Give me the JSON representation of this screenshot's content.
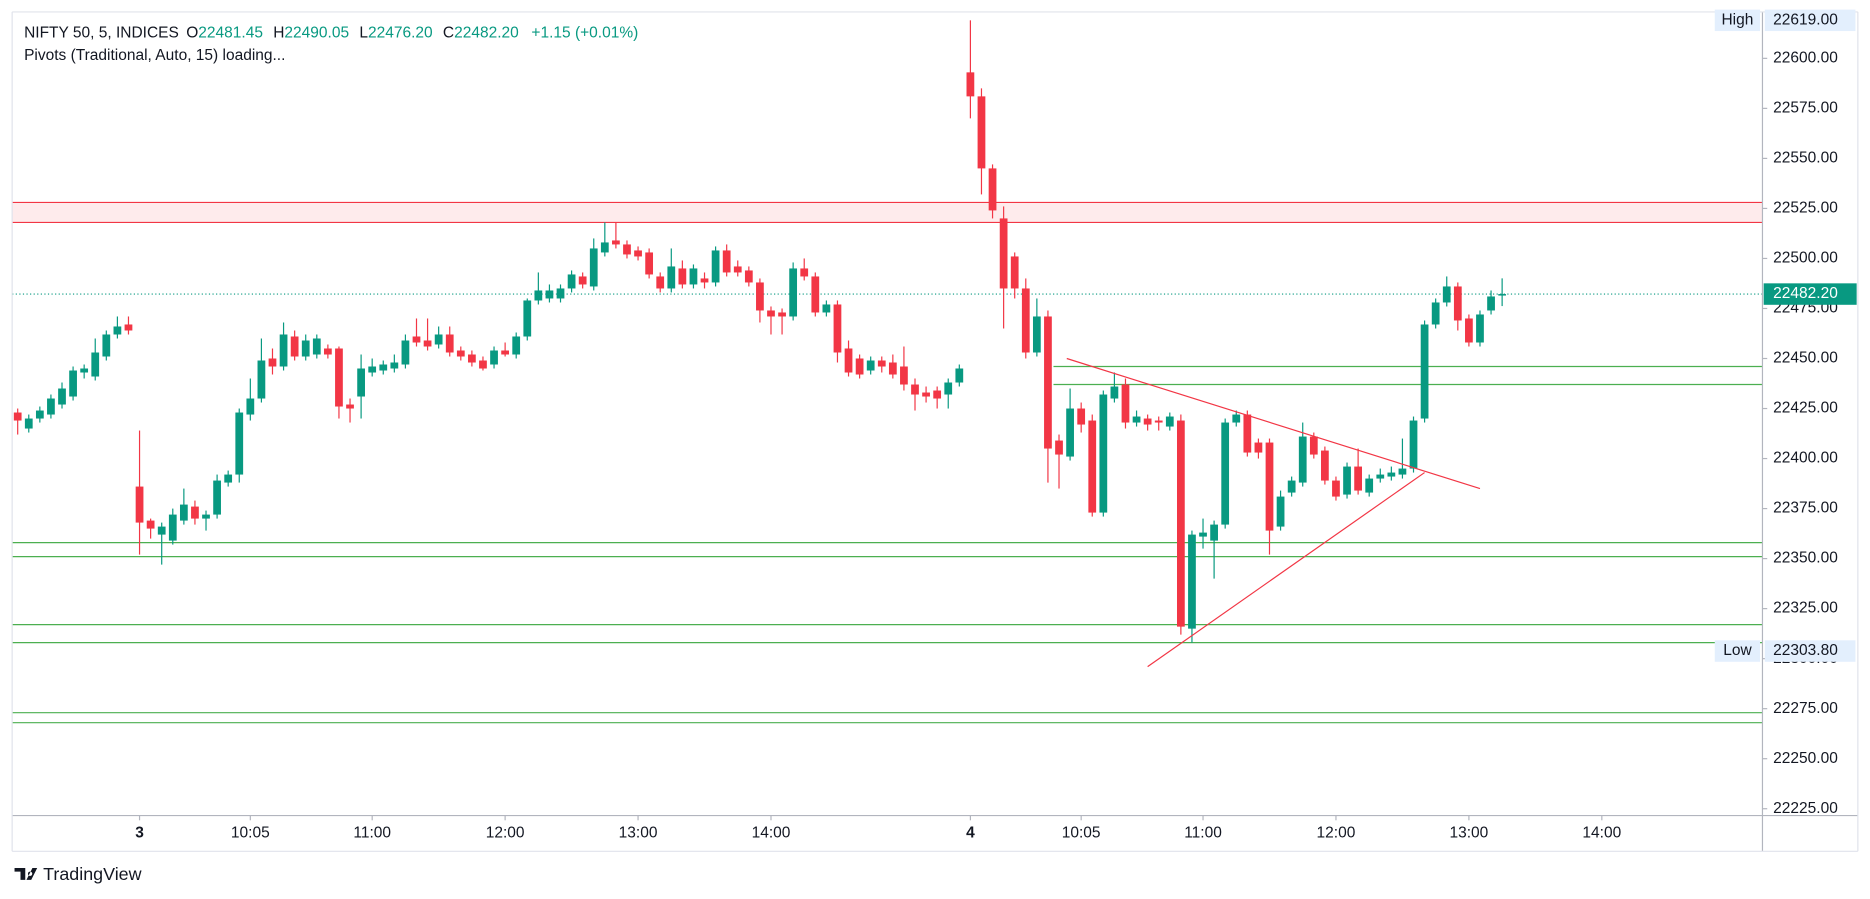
{
  "chart_data": {
    "type": "candlestick",
    "legend": {
      "symbol": "NIFTY 50, 5, INDICES",
      "o_label": "O",
      "open": "22481.45",
      "h_label": "H",
      "high": "22490.05",
      "l_label": "L",
      "low": "22476.20",
      "c_label": "C",
      "close": "22482.20",
      "change": "+1.15 (+0.01%)"
    },
    "indicator": "Pivots (Traditional, Auto, 15) loading...",
    "up_color": "#089981",
    "down_color": "#f23645",
    "ohlc": [
      [
        22423,
        22425,
        22412,
        22419
      ],
      [
        22415,
        22422,
        22413,
        22420
      ],
      [
        22420,
        22426,
        22418,
        22424
      ],
      [
        22422,
        22432,
        22420,
        22430
      ],
      [
        22427,
        22438,
        22425,
        22435
      ],
      [
        22431,
        22446,
        22429,
        22444
      ],
      [
        22443,
        22447,
        22440,
        22445
      ],
      [
        22441,
        22460,
        22439,
        22453
      ],
      [
        22451,
        22464,
        22449,
        22462
      ],
      [
        22462,
        22471,
        22460,
        22466
      ],
      [
        22467,
        22471,
        22462,
        22464
      ],
      [
        22386,
        22414,
        22352,
        22368
      ],
      [
        22369,
        22370,
        22360,
        22365
      ],
      [
        22362,
        22368,
        22347,
        22366
      ],
      [
        22359,
        22375,
        22357,
        22372
      ],
      [
        22369,
        22385,
        22367,
        22377
      ],
      [
        22376,
        22379,
        22367,
        22370
      ],
      [
        22370,
        22374,
        22364,
        22372
      ],
      [
        22372,
        22392,
        22370,
        22389
      ],
      [
        22388,
        22394,
        22386,
        22392
      ],
      [
        22392,
        22425,
        22388,
        22423
      ],
      [
        22422,
        22440,
        22419,
        22430
      ],
      [
        22430,
        22460,
        22428,
        22449
      ],
      [
        22450,
        22455,
        22442,
        22446
      ],
      [
        22446,
        22468,
        22444,
        22462
      ],
      [
        22461,
        22464,
        22449,
        22451
      ],
      [
        22451,
        22462,
        22449,
        22459
      ],
      [
        22452,
        22462,
        22450,
        22460
      ],
      [
        22455,
        22457,
        22450,
        22452
      ],
      [
        22455,
        22456,
        22420,
        22426
      ],
      [
        22427,
        22430,
        22418,
        22425
      ],
      [
        22431,
        22452,
        22420,
        22445
      ],
      [
        22443,
        22450,
        22441,
        22446
      ],
      [
        22444,
        22449,
        22442,
        22447
      ],
      [
        22445,
        22452,
        22443,
        22448
      ],
      [
        22447,
        22462,
        22445,
        22459
      ],
      [
        22461,
        22470,
        22456,
        22458
      ],
      [
        22459,
        22470,
        22454,
        22456
      ],
      [
        22457,
        22466,
        22455,
        22462
      ],
      [
        22462,
        22466,
        22451,
        22453
      ],
      [
        22454,
        22456,
        22449,
        22451
      ],
      [
        22452,
        22454,
        22446,
        22448
      ],
      [
        22449,
        22451,
        22444,
        22445
      ],
      [
        22447,
        22456,
        22445,
        22454
      ],
      [
        22454,
        22458,
        22451,
        22452
      ],
      [
        22452,
        22463,
        22450,
        22461
      ],
      [
        22461,
        22480,
        22459,
        22479
      ],
      [
        22479,
        22493,
        22477,
        22484
      ],
      [
        22480,
        22487,
        22478,
        22484
      ],
      [
        22480,
        22487,
        22478,
        22485
      ],
      [
        22485,
        22494,
        22483,
        22492
      ],
      [
        22491,
        22493,
        22485,
        22487
      ],
      [
        22486,
        22510,
        22484,
        22505
      ],
      [
        22503,
        22518,
        22501,
        22508
      ],
      [
        22509,
        22518,
        22505,
        22507
      ],
      [
        22507,
        22509,
        22500,
        22502
      ],
      [
        22504,
        22506,
        22499,
        22501
      ],
      [
        22503,
        22505,
        22490,
        22492
      ],
      [
        22491,
        22493,
        22483,
        22485
      ],
      [
        22485,
        22505,
        22483,
        22496
      ],
      [
        22495,
        22499,
        22485,
        22487
      ],
      [
        22487,
        22497,
        22485,
        22495
      ],
      [
        22490,
        22493,
        22485,
        22488
      ],
      [
        22488,
        22506,
        22486,
        22504
      ],
      [
        22504,
        22507,
        22491,
        22493
      ],
      [
        22496,
        22499,
        22491,
        22493
      ],
      [
        22494,
        22496,
        22486,
        22488
      ],
      [
        22488,
        22490,
        22468,
        22474
      ],
      [
        22474,
        22476,
        22462,
        22471
      ],
      [
        22473,
        22475,
        22462,
        22471
      ],
      [
        22471,
        22498,
        22469,
        22495
      ],
      [
        22495,
        22500,
        22489,
        22491
      ],
      [
        22491,
        22493,
        22471,
        22473
      ],
      [
        22473,
        22479,
        22471,
        22477
      ],
      [
        22477,
        22479,
        22448,
        22453
      ],
      [
        22455,
        22459,
        22441,
        22443
      ],
      [
        22450,
        22452,
        22440,
        22442
      ],
      [
        22444,
        22451,
        22442,
        22449
      ],
      [
        22449,
        22451,
        22443,
        22446
      ],
      [
        22448,
        22452,
        22440,
        22442
      ],
      [
        22446,
        22456,
        22434,
        22437
      ],
      [
        22437,
        22440,
        22424,
        22432
      ],
      [
        22433,
        22436,
        22428,
        22431
      ],
      [
        22434,
        22436,
        22425,
        22430
      ],
      [
        22432,
        22440,
        22425,
        22438
      ],
      [
        22438,
        22447,
        22436,
        22445
      ],
      [
        22593,
        22619,
        22570,
        22581
      ],
      [
        22581,
        22585,
        22532,
        22545
      ],
      [
        22545,
        22547,
        22520,
        22524
      ],
      [
        22520,
        22526,
        22465,
        22485
      ],
      [
        22501,
        22503,
        22480,
        22485
      ],
      [
        22485,
        22490,
        22450,
        22453
      ],
      [
        22453,
        22480,
        22451,
        22471
      ],
      [
        22471,
        22474,
        22388,
        22405
      ],
      [
        22409,
        22412,
        22385,
        22402
      ],
      [
        22401,
        22435,
        22399,
        22425
      ],
      [
        22425,
        22428,
        22413,
        22417
      ],
      [
        22419,
        22422,
        22371,
        22373
      ],
      [
        22373,
        22434,
        22371,
        22432
      ],
      [
        22430,
        22443,
        22428,
        22436
      ],
      [
        22437,
        22440,
        22415,
        22418
      ],
      [
        22418,
        22424,
        22416,
        22421
      ],
      [
        22420,
        22422,
        22414,
        22417
      ],
      [
        22419,
        22421,
        22414,
        22418
      ],
      [
        22416,
        22423,
        22414,
        22421
      ],
      [
        22419,
        22422,
        22312,
        22316
      ],
      [
        22315,
        22364,
        22308,
        22362
      ],
      [
        22361,
        22370,
        22355,
        22363
      ],
      [
        22359,
        22369,
        22340,
        22367
      ],
      [
        22367,
        22420,
        22365,
        22418
      ],
      [
        22418,
        22424,
        22416,
        22422
      ],
      [
        22422,
        22424,
        22401,
        22403
      ],
      [
        22408,
        22410,
        22400,
        22403
      ],
      [
        22408,
        22410,
        22352,
        22364
      ],
      [
        22366,
        22384,
        22364,
        22381
      ],
      [
        22383,
        22391,
        22381,
        22389
      ],
      [
        22388,
        22418,
        22386,
        22411
      ],
      [
        22411,
        22413,
        22400,
        22402
      ],
      [
        22404,
        22406,
        22387,
        22389
      ],
      [
        22389,
        22391,
        22379,
        22381
      ],
      [
        22382,
        22398,
        22380,
        22396
      ],
      [
        22396,
        22405,
        22382,
        22384
      ],
      [
        22383,
        22392,
        22381,
        22390
      ],
      [
        22390,
        22395,
        22388,
        22392
      ],
      [
        22391,
        22396,
        22389,
        22393
      ],
      [
        22392,
        22410,
        22390,
        22395
      ],
      [
        22395,
        22421,
        22393,
        22419
      ],
      [
        22420,
        22469,
        22418,
        22467
      ],
      [
        22467,
        22480,
        22465,
        22478
      ],
      [
        22478,
        22491,
        22476,
        22486
      ],
      [
        22486,
        22488,
        22464,
        22469
      ],
      [
        22470,
        22472,
        22456,
        22458
      ],
      [
        22458,
        22474,
        22456,
        22472
      ],
      [
        22474,
        22484,
        22472,
        22481
      ],
      [
        22481.45,
        22490.05,
        22476.2,
        22482.2
      ]
    ],
    "levels": [
      {
        "value": 22528,
        "color": "#f23645",
        "x_start": -0.5
      },
      {
        "value": 22518,
        "color": "#f23645",
        "x_start": -0.5
      },
      {
        "value": 22446,
        "color": "#4caf50",
        "x_start": 93.5
      },
      {
        "value": 22437,
        "color": "#4caf50",
        "x_start": 93.5
      },
      {
        "value": 22358,
        "color": "#4caf50",
        "x_start": -0.5
      },
      {
        "value": 22351,
        "color": "#4caf50",
        "x_start": -0.5
      },
      {
        "value": 22317,
        "color": "#4caf50",
        "x_start": -0.5
      },
      {
        "value": 22308,
        "color": "#4caf50",
        "x_start": -0.5
      },
      {
        "value": 22273,
        "color": "#4caf50",
        "x_start": -0.5
      },
      {
        "value": 22268,
        "color": "#4caf50",
        "x_start": -0.5
      }
    ],
    "trendlines": [
      {
        "x": [
          94.7,
          132
        ],
        "y": [
          22450,
          22385
        ],
        "color": "#f23645"
      },
      {
        "x": [
          102,
          127
        ],
        "y": [
          22296,
          22393
        ],
        "color": "#f23645"
      }
    ],
    "xlim": [
      -0.5,
      157.5
    ],
    "xticks": [
      {
        "value": 11,
        "label": "3"
      },
      {
        "value": 21,
        "label": "10:05"
      },
      {
        "value": 32,
        "label": "11:00"
      },
      {
        "value": 44,
        "label": "12:00"
      },
      {
        "value": 56,
        "label": "13:00"
      },
      {
        "value": 68,
        "label": "14:00"
      },
      {
        "value": 86,
        "label": "4"
      },
      {
        "value": 96,
        "label": "10:05"
      },
      {
        "value": 107,
        "label": "11:00"
      },
      {
        "value": 119,
        "label": "12:00"
      },
      {
        "value": 131,
        "label": "13:00"
      },
      {
        "value": 143,
        "label": "14:00"
      }
    ],
    "ylim": [
      22221.6,
      22623.2
    ],
    "yticks": [
      {
        "value": 22225,
        "label": "22225.00"
      },
      {
        "value": 22250,
        "label": "22250.00"
      },
      {
        "value": 22275,
        "label": "22275.00"
      },
      {
        "value": 22300,
        "label": "22300.00"
      },
      {
        "value": 22325,
        "label": "22325.00"
      },
      {
        "value": 22350,
        "label": "22350.00"
      },
      {
        "value": 22375,
        "label": "22375.00"
      },
      {
        "value": 22400,
        "label": "22400.00"
      },
      {
        "value": 22425,
        "label": "22425.00"
      },
      {
        "value": 22450,
        "label": "22450.00"
      },
      {
        "value": 22475,
        "label": "22475.00"
      },
      {
        "value": 22500,
        "label": "22500.00"
      },
      {
        "value": 22525,
        "label": "22525.00"
      },
      {
        "value": 22550,
        "label": "22550.00"
      },
      {
        "value": 22575,
        "label": "22575.00"
      },
      {
        "value": 22600,
        "label": "22600.00"
      }
    ],
    "high_tag": {
      "name": "High",
      "value": {
        "value": 22619,
        "label": "22619.00"
      }
    },
    "low_tag": {
      "name": "Low",
      "value": {
        "value": 22303.8,
        "label": "22303.80"
      }
    },
    "last_price": {
      "value": 22482.2,
      "label": "22482.20"
    },
    "footer": "TradingView"
  }
}
